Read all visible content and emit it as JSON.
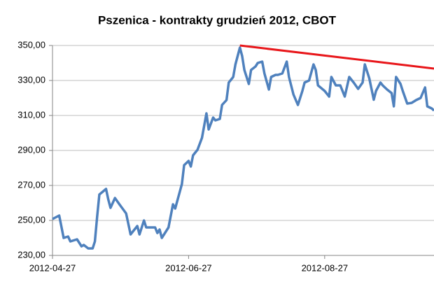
{
  "chart_data": {
    "type": "line",
    "title": "Pszenica - kontrakty grudzień 2012, CBOT",
    "xlim": [
      "2012-04-27",
      "2012-10-15"
    ],
    "xticks": [
      "2012-04-27",
      "2012-06-27",
      "2012-08-27"
    ],
    "ylim": [
      230,
      350
    ],
    "yticks": [
      {
        "value": 230,
        "label": "230,00"
      },
      {
        "value": 250,
        "label": "250,00"
      },
      {
        "value": 270,
        "label": "270,00"
      },
      {
        "value": 290,
        "label": "290,00"
      },
      {
        "value": 310,
        "label": "310,00"
      },
      {
        "value": 330,
        "label": "330,00"
      },
      {
        "value": 350,
        "label": "350,00"
      }
    ],
    "grid": true,
    "series": [
      {
        "color": "#4f81bd",
        "x": [
          "2012-04-27",
          "2012-04-30",
          "2012-05-02",
          "2012-05-04",
          "2012-05-05",
          "2012-05-08",
          "2012-05-10",
          "2012-05-11",
          "2012-05-13",
          "2012-05-15",
          "2012-05-16",
          "2012-05-17",
          "2012-05-18",
          "2012-05-21",
          "2012-05-22",
          "2012-05-23",
          "2012-05-25",
          "2012-05-27",
          "2012-05-30",
          "2012-06-01",
          "2012-06-04",
          "2012-06-05",
          "2012-06-07",
          "2012-06-08",
          "2012-06-12",
          "2012-06-13",
          "2012-06-14",
          "2012-06-15",
          "2012-06-18",
          "2012-06-20",
          "2012-06-21",
          "2012-06-24",
          "2012-06-25",
          "2012-06-27",
          "2012-06-28",
          "2012-06-29",
          "2012-07-01",
          "2012-07-03",
          "2012-07-05",
          "2012-07-06",
          "2012-07-08",
          "2012-07-09",
          "2012-07-11",
          "2012-07-12",
          "2012-07-14",
          "2012-07-15",
          "2012-07-17",
          "2012-07-18",
          "2012-07-20",
          "2012-07-21",
          "2012-07-22",
          "2012-07-24",
          "2012-07-25",
          "2012-07-27",
          "2012-07-28",
          "2012-07-30",
          "2012-07-31",
          "2012-08-02",
          "2012-08-03",
          "2012-08-05",
          "2012-08-06",
          "2012-08-08",
          "2012-08-10",
          "2012-08-11",
          "2012-08-13",
          "2012-08-15",
          "2012-08-17",
          "2012-08-18",
          "2012-08-20",
          "2012-08-22",
          "2012-08-23",
          "2012-08-24",
          "2012-08-27",
          "2012-08-29",
          "2012-08-30",
          "2012-09-01",
          "2012-09-03",
          "2012-09-05",
          "2012-09-07",
          "2012-09-09",
          "2012-09-11",
          "2012-09-13",
          "2012-09-14",
          "2012-09-16",
          "2012-09-18",
          "2012-09-19",
          "2012-09-21",
          "2012-09-22",
          "2012-09-24",
          "2012-09-26",
          "2012-09-27",
          "2012-09-28",
          "2012-09-30",
          "2012-10-01",
          "2012-10-03",
          "2012-10-05",
          "2012-10-07",
          "2012-10-09",
          "2012-10-11",
          "2012-10-12",
          "2012-10-14",
          "2012-10-15"
        ],
        "values": [
          250.8,
          252.8,
          240,
          240.8,
          238,
          239.2,
          235.2,
          236,
          234,
          234,
          238,
          252,
          264.8,
          268,
          262,
          257.2,
          262.8,
          259.2,
          254,
          242,
          246.8,
          242,
          250,
          246,
          246,
          242.8,
          244.8,
          240,
          246,
          259.2,
          256.8,
          270.8,
          281.6,
          284,
          280.8,
          287.2,
          290.4,
          297.2,
          311.2,
          302,
          308.8,
          307.2,
          308,
          316,
          318.8,
          328.8,
          332,
          339.2,
          348.8,
          344,
          336,
          328,
          336,
          338,
          340,
          340.8,
          334,
          324.8,
          332,
          333.2,
          333.2,
          334,
          340.8,
          332,
          322,
          316,
          324,
          328.8,
          330,
          339.2,
          336,
          327.2,
          324,
          320.8,
          332,
          327.2,
          327.2,
          320.8,
          332,
          328.8,
          325.2,
          328.8,
          339.2,
          331.2,
          319,
          324,
          328.8,
          327.2,
          324.8,
          322.8,
          315.2,
          332,
          328,
          324,
          316.8,
          317.2,
          318.8,
          320,
          326,
          315.2,
          314,
          312.8
        ]
      },
      {
        "color": "#e8161a",
        "x": [
          "2012-07-20",
          "2012-10-15"
        ],
        "values": [
          350,
          336.8
        ]
      }
    ]
  }
}
